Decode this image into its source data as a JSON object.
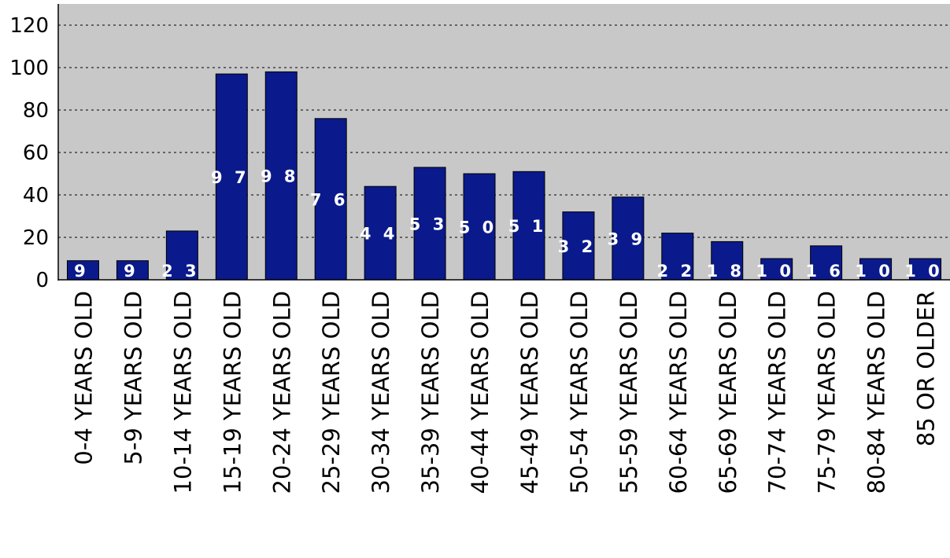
{
  "chart_data": {
    "type": "bar",
    "categories": [
      "0-4 YEARS OLD",
      "5-9 YEARS OLD",
      "10-14 YEARS OLD",
      "15-19 YEARS OLD",
      "20-24 YEARS OLD",
      "25-29 YEARS OLD",
      "30-34 YEARS OLD",
      "35-39 YEARS OLD",
      "40-44 YEARS OLD",
      "45-49 YEARS OLD",
      "50-54 YEARS OLD",
      "55-59 YEARS OLD",
      "60-64 YEARS OLD",
      "65-69 YEARS OLD",
      "70-74 YEARS OLD",
      "75-79 YEARS OLD",
      "80-84 YEARS OLD",
      "85 OR OLDER"
    ],
    "values": [
      9,
      9,
      23,
      97,
      98,
      76,
      44,
      53,
      50,
      51,
      32,
      39,
      22,
      18,
      10,
      16,
      10,
      10
    ],
    "value_labels": [
      "9",
      "9",
      "2 3",
      "9 7",
      "9 8",
      "7 6",
      "4 4",
      "5 3",
      "5 0",
      "5 1",
      "3 2",
      "3 9",
      "2 2",
      "1 8",
      "1 0",
      "1 6",
      "1 0",
      "1 0"
    ],
    "yticks": [
      "0",
      "20",
      "40",
      "60",
      "80",
      "100",
      "120"
    ],
    "ylim": [
      0,
      130
    ],
    "grid": true,
    "legend": "none",
    "colors": {
      "bar": "#0a1a8c",
      "plot_bg": "#c8c8c8",
      "grid": "#000000"
    }
  }
}
